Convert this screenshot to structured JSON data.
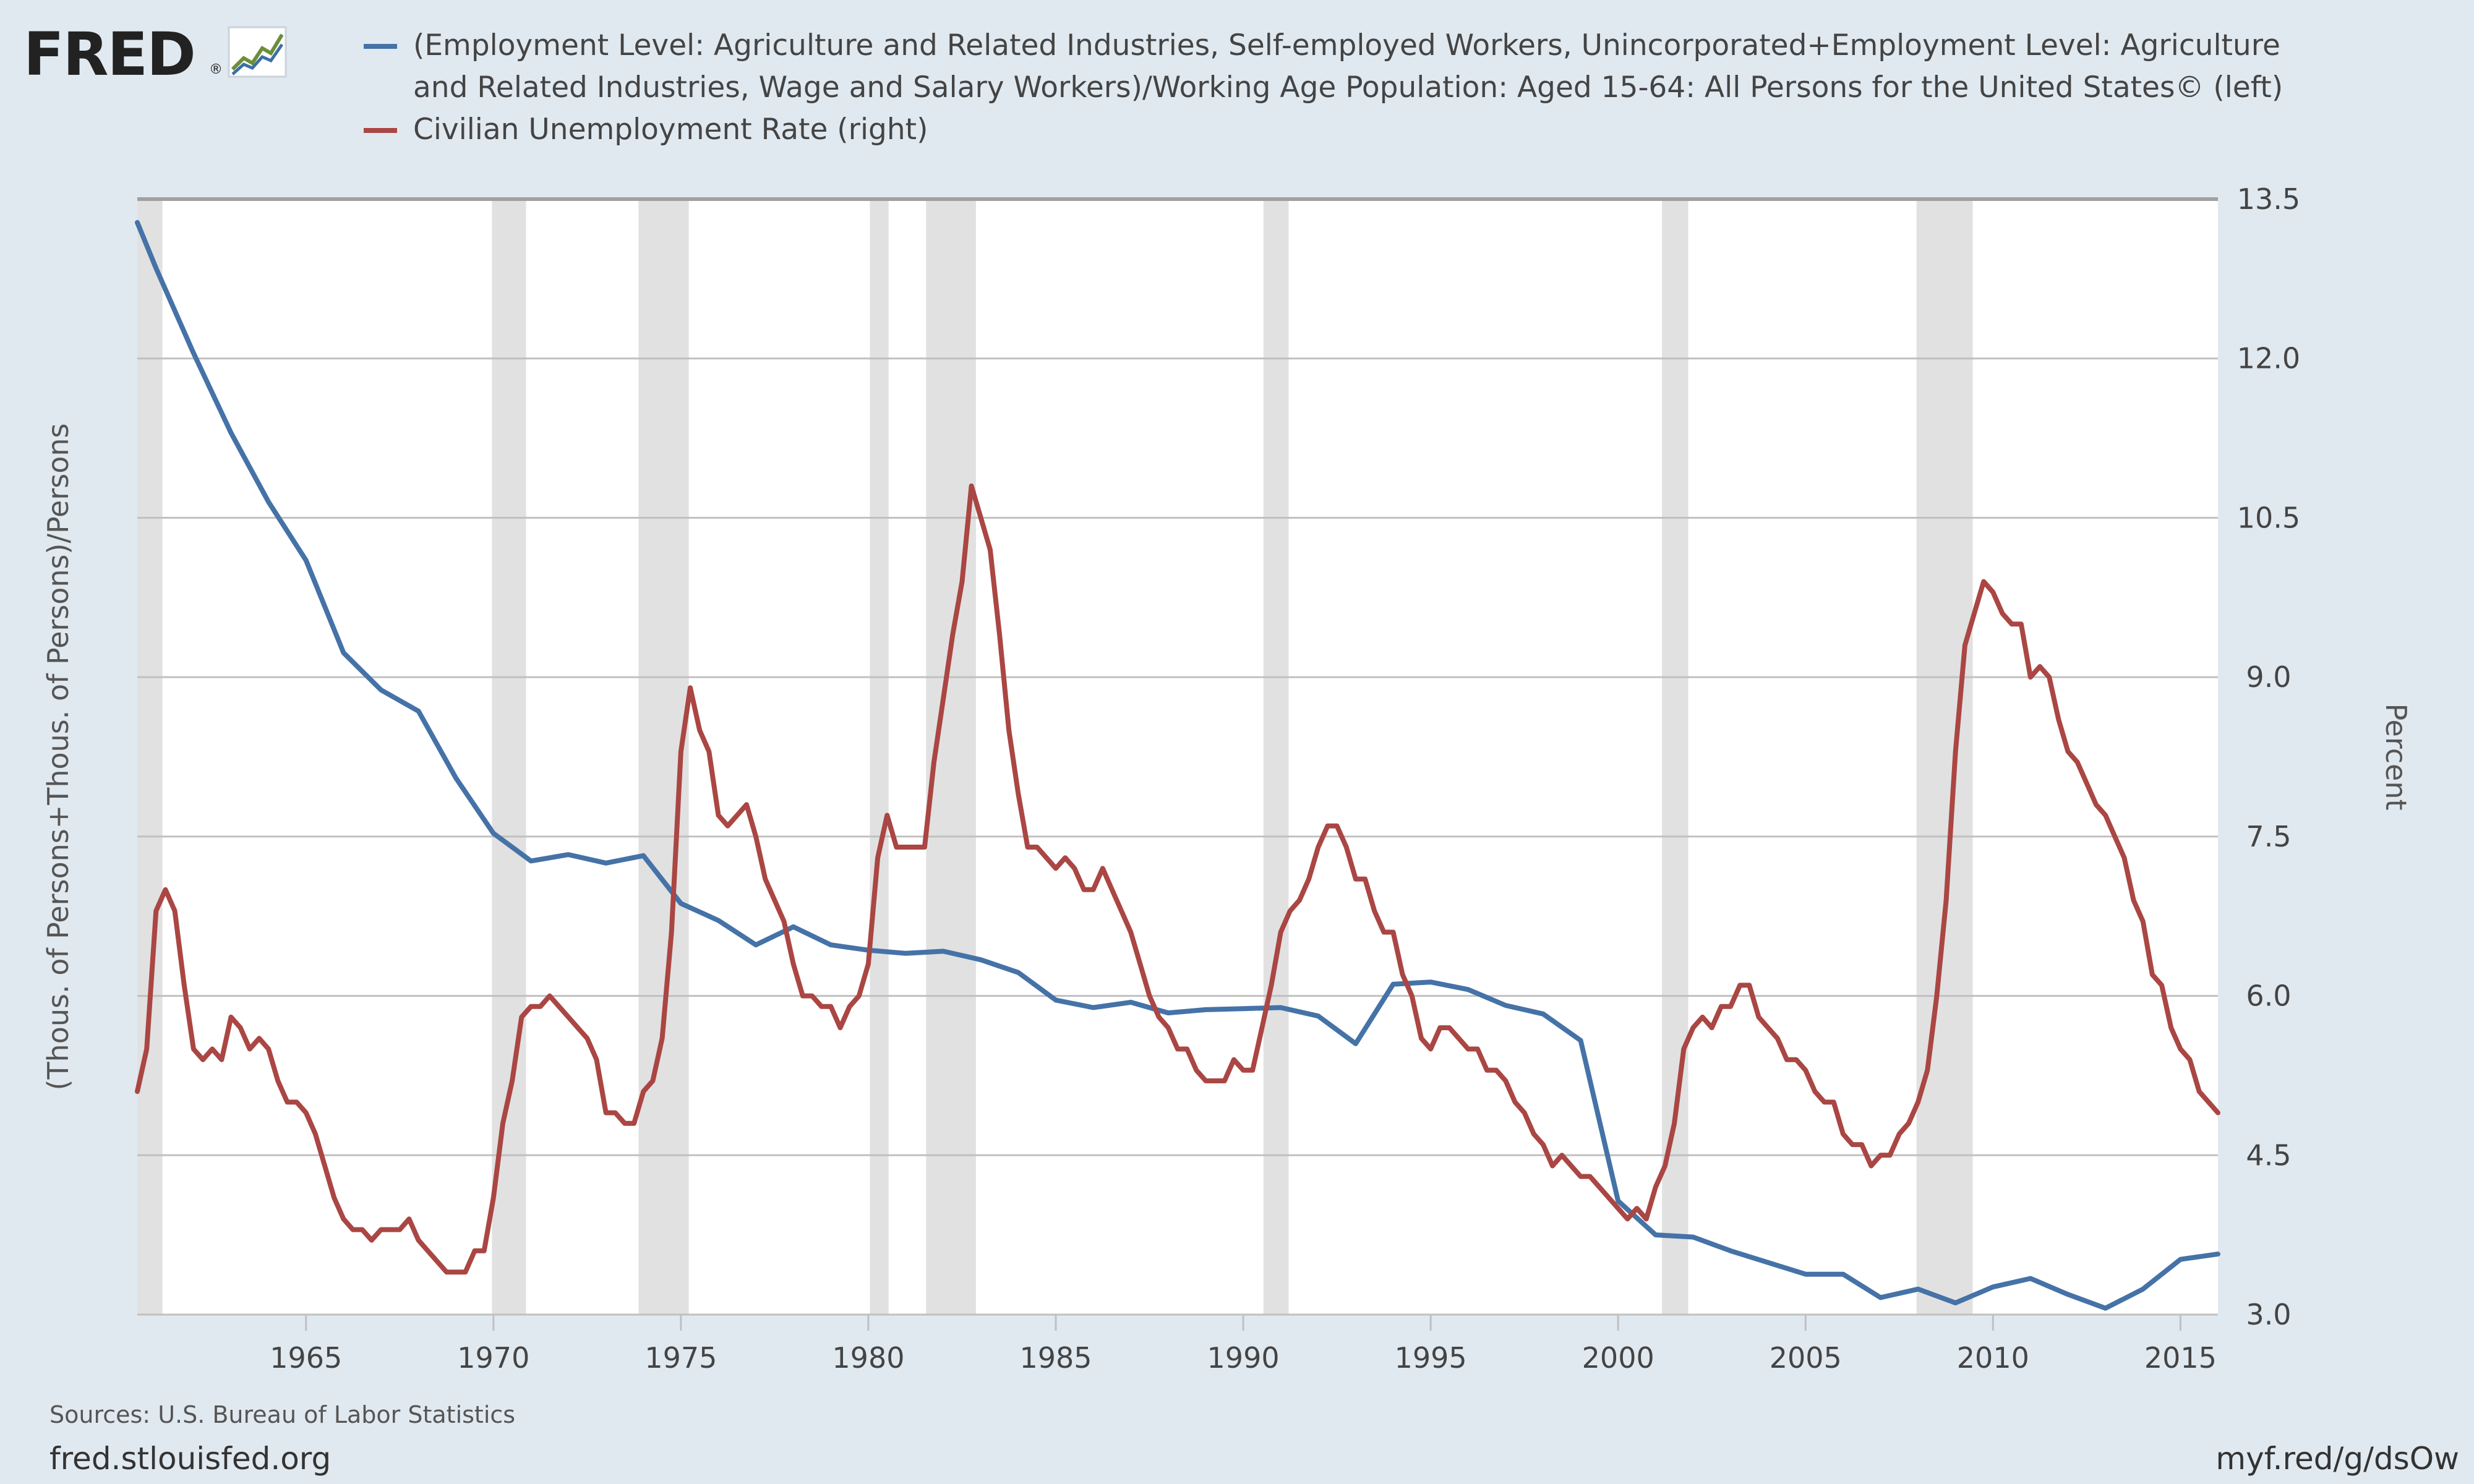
{
  "header": {
    "logo_text": "FRED",
    "logo_mark": "®"
  },
  "colors": {
    "background": "#e1e9f0",
    "series1": "#4572a7",
    "series2": "#aa4643",
    "recession": "#e1e1e1",
    "grid": "#c0c0c0"
  },
  "footer": {
    "sources": "Sources: U.S. Bureau of Labor Statistics",
    "site": "fred.stlouisfed.org",
    "short_link": "myf.red/g/dsOw"
  },
  "chart_data": {
    "type": "line",
    "title": "",
    "xlim": [
      1960.5,
      2016.0
    ],
    "x_ticks": [
      1965,
      1970,
      1975,
      1980,
      1985,
      1990,
      1995,
      2000,
      2005,
      2010,
      2015
    ],
    "x_tick_labels": [
      "1965",
      "1970",
      "1975",
      "1980",
      "1985",
      "1990",
      "1995",
      "2000",
      "2005",
      "2010",
      "2015"
    ],
    "left_axis": {
      "label": "(Thous. of Persons+Thous. of Persons)/Persons",
      "range": [
        3.0,
        13.5
      ]
    },
    "right_axis": {
      "label": "Percent",
      "range": [
        3.0,
        13.5
      ],
      "ticks": [
        3.0,
        4.5,
        6.0,
        7.5,
        9.0,
        10.5,
        12.0,
        13.5
      ],
      "tick_labels": [
        "3.0",
        "4.5",
        "6.0",
        "7.5",
        "9.0",
        "10.5",
        "12.0",
        "13.5"
      ]
    },
    "grid": true,
    "legend_position": "top",
    "recessions": [
      [
        1960.33,
        1961.17
      ],
      [
        1969.96,
        1970.87
      ],
      [
        1973.87,
        1975.21
      ],
      [
        1980.04,
        1980.54
      ],
      [
        1981.54,
        1982.87
      ],
      [
        1990.54,
        1991.21
      ],
      [
        2001.17,
        2001.87
      ],
      [
        2007.96,
        2009.46
      ]
    ],
    "series": [
      {
        "name": "(Employment Level: Agriculture and Related Industries, Self-employed Workers, Unincorporated+Employment Level: Agriculture and Related Industries, Wage and Salary Workers)/Working Age Population: Aged 15-64: All Persons for the United States© (left)",
        "color": "#4572a7",
        "axis": "left",
        "points": [
          [
            1960.5,
            13.28
          ],
          [
            1961,
            12.85
          ],
          [
            1962,
            12.05
          ],
          [
            1963,
            11.3
          ],
          [
            1964,
            10.65
          ],
          [
            1965,
            10.1
          ],
          [
            1966,
            9.23
          ],
          [
            1967,
            8.88
          ],
          [
            1968,
            8.68
          ],
          [
            1969,
            8.05
          ],
          [
            1970,
            7.53
          ],
          [
            1971,
            7.27
          ],
          [
            1972,
            7.33
          ],
          [
            1973,
            7.25
          ],
          [
            1974,
            7.32
          ],
          [
            1975,
            6.87
          ],
          [
            1976,
            6.71
          ],
          [
            1977,
            6.48
          ],
          [
            1978,
            6.65
          ],
          [
            1979,
            6.48
          ],
          [
            1980,
            6.43
          ],
          [
            1981,
            6.4
          ],
          [
            1982,
            6.42
          ],
          [
            1983,
            6.34
          ],
          [
            1984,
            6.22
          ],
          [
            1985,
            5.96
          ],
          [
            1986,
            5.89
          ],
          [
            1987,
            5.94
          ],
          [
            1988,
            5.84
          ],
          [
            1989,
            5.87
          ],
          [
            1990,
            5.88
          ],
          [
            1991,
            5.89
          ],
          [
            1992,
            5.81
          ],
          [
            1993,
            5.55
          ],
          [
            1994,
            6.11
          ],
          [
            1995,
            6.13
          ],
          [
            1996,
            6.06
          ],
          [
            1997,
            5.91
          ],
          [
            1998,
            5.83
          ],
          [
            1999,
            5.58
          ],
          [
            2000,
            4.07
          ],
          [
            2001,
            3.75
          ],
          [
            2002,
            3.73
          ],
          [
            2003,
            3.6
          ],
          [
            2004,
            3.49
          ],
          [
            2005,
            3.38
          ],
          [
            2006,
            3.38
          ],
          [
            2007,
            3.16
          ],
          [
            2008,
            3.24
          ],
          [
            2009,
            3.11
          ],
          [
            2010,
            3.26
          ],
          [
            2011,
            3.34
          ],
          [
            2012,
            3.19
          ],
          [
            2013,
            3.06
          ],
          [
            2014,
            3.24
          ],
          [
            2015,
            3.52
          ],
          [
            2016,
            3.57
          ]
        ]
      },
      {
        "name": "Civilian Unemployment Rate (right)",
        "color": "#aa4643",
        "axis": "right",
        "points": [
          [
            1960.5,
            5.1
          ],
          [
            1960.75,
            5.5
          ],
          [
            1961,
            6.8
          ],
          [
            1961.25,
            7.0
          ],
          [
            1961.5,
            6.8
          ],
          [
            1961.75,
            6.1
          ],
          [
            1962,
            5.5
          ],
          [
            1962.25,
            5.4
          ],
          [
            1962.5,
            5.5
          ],
          [
            1962.75,
            5.4
          ],
          [
            1963,
            5.8
          ],
          [
            1963.25,
            5.7
          ],
          [
            1963.5,
            5.5
          ],
          [
            1963.75,
            5.6
          ],
          [
            1964,
            5.5
          ],
          [
            1964.25,
            5.2
          ],
          [
            1964.5,
            5.0
          ],
          [
            1964.75,
            5.0
          ],
          [
            1965,
            4.9
          ],
          [
            1965.25,
            4.7
          ],
          [
            1965.5,
            4.4
          ],
          [
            1965.75,
            4.1
          ],
          [
            1966,
            3.9
          ],
          [
            1966.25,
            3.8
          ],
          [
            1966.5,
            3.8
          ],
          [
            1966.75,
            3.7
          ],
          [
            1967,
            3.8
          ],
          [
            1967.25,
            3.8
          ],
          [
            1967.5,
            3.8
          ],
          [
            1967.75,
            3.9
          ],
          [
            1968,
            3.7
          ],
          [
            1968.25,
            3.6
          ],
          [
            1968.5,
            3.5
          ],
          [
            1968.75,
            3.4
          ],
          [
            1969,
            3.4
          ],
          [
            1969.25,
            3.4
          ],
          [
            1969.5,
            3.6
          ],
          [
            1969.75,
            3.6
          ],
          [
            1970,
            4.1
          ],
          [
            1970.25,
            4.8
          ],
          [
            1970.5,
            5.2
          ],
          [
            1970.75,
            5.8
          ],
          [
            1971,
            5.9
          ],
          [
            1971.25,
            5.9
          ],
          [
            1971.5,
            6.0
          ],
          [
            1971.75,
            5.9
          ],
          [
            1972,
            5.8
          ],
          [
            1972.25,
            5.7
          ],
          [
            1972.5,
            5.6
          ],
          [
            1972.75,
            5.4
          ],
          [
            1973,
            4.9
          ],
          [
            1973.25,
            4.9
          ],
          [
            1973.5,
            4.8
          ],
          [
            1973.75,
            4.8
          ],
          [
            1974,
            5.1
          ],
          [
            1974.25,
            5.2
          ],
          [
            1974.5,
            5.6
          ],
          [
            1974.75,
            6.6
          ],
          [
            1975,
            8.3
          ],
          [
            1975.25,
            8.9
          ],
          [
            1975.5,
            8.5
          ],
          [
            1975.75,
            8.3
          ],
          [
            1976,
            7.7
          ],
          [
            1976.25,
            7.6
          ],
          [
            1976.5,
            7.7
          ],
          [
            1976.75,
            7.8
          ],
          [
            1977,
            7.5
          ],
          [
            1977.25,
            7.1
          ],
          [
            1977.5,
            6.9
          ],
          [
            1977.75,
            6.7
          ],
          [
            1978,
            6.3
          ],
          [
            1978.25,
            6.0
          ],
          [
            1978.5,
            6.0
          ],
          [
            1978.75,
            5.9
          ],
          [
            1979,
            5.9
          ],
          [
            1979.25,
            5.7
          ],
          [
            1979.5,
            5.9
          ],
          [
            1979.75,
            6.0
          ],
          [
            1980,
            6.3
          ],
          [
            1980.25,
            7.3
          ],
          [
            1980.5,
            7.7
          ],
          [
            1980.75,
            7.4
          ],
          [
            1981,
            7.4
          ],
          [
            1981.25,
            7.4
          ],
          [
            1981.5,
            7.4
          ],
          [
            1981.75,
            8.2
          ],
          [
            1982,
            8.8
          ],
          [
            1982.25,
            9.4
          ],
          [
            1982.5,
            9.9
          ],
          [
            1982.75,
            10.8
          ],
          [
            1983,
            10.5
          ],
          [
            1983.25,
            10.2
          ],
          [
            1983.5,
            9.4
          ],
          [
            1983.75,
            8.5
          ],
          [
            1984,
            7.9
          ],
          [
            1984.25,
            7.4
          ],
          [
            1984.5,
            7.4
          ],
          [
            1984.75,
            7.3
          ],
          [
            1985,
            7.2
          ],
          [
            1985.25,
            7.3
          ],
          [
            1985.5,
            7.2
          ],
          [
            1985.75,
            7.0
          ],
          [
            1986,
            7.0
          ],
          [
            1986.25,
            7.2
          ],
          [
            1986.5,
            7.0
          ],
          [
            1986.75,
            6.8
          ],
          [
            1987,
            6.6
          ],
          [
            1987.25,
            6.3
          ],
          [
            1987.5,
            6.0
          ],
          [
            1987.75,
            5.8
          ],
          [
            1988,
            5.7
          ],
          [
            1988.25,
            5.5
          ],
          [
            1988.5,
            5.5
          ],
          [
            1988.75,
            5.3
          ],
          [
            1989,
            5.2
          ],
          [
            1989.25,
            5.2
          ],
          [
            1989.5,
            5.2
          ],
          [
            1989.75,
            5.4
          ],
          [
            1990,
            5.3
          ],
          [
            1990.25,
            5.3
          ],
          [
            1990.5,
            5.7
          ],
          [
            1990.75,
            6.1
          ],
          [
            1991,
            6.6
          ],
          [
            1991.25,
            6.8
          ],
          [
            1991.5,
            6.9
          ],
          [
            1991.75,
            7.1
          ],
          [
            1992,
            7.4
          ],
          [
            1992.25,
            7.6
          ],
          [
            1992.5,
            7.6
          ],
          [
            1992.75,
            7.4
          ],
          [
            1993,
            7.1
          ],
          [
            1993.25,
            7.1
          ],
          [
            1993.5,
            6.8
          ],
          [
            1993.75,
            6.6
          ],
          [
            1994,
            6.6
          ],
          [
            1994.25,
            6.2
          ],
          [
            1994.5,
            6.0
          ],
          [
            1994.75,
            5.6
          ],
          [
            1995,
            5.5
          ],
          [
            1995.25,
            5.7
          ],
          [
            1995.5,
            5.7
          ],
          [
            1995.75,
            5.6
          ],
          [
            1996,
            5.5
          ],
          [
            1996.25,
            5.5
          ],
          [
            1996.5,
            5.3
          ],
          [
            1996.75,
            5.3
          ],
          [
            1997,
            5.2
          ],
          [
            1997.25,
            5.0
          ],
          [
            1997.5,
            4.9
          ],
          [
            1997.75,
            4.7
          ],
          [
            1998,
            4.6
          ],
          [
            1998.25,
            4.4
          ],
          [
            1998.5,
            4.5
          ],
          [
            1998.75,
            4.4
          ],
          [
            1999,
            4.3
          ],
          [
            1999.25,
            4.3
          ],
          [
            1999.5,
            4.2
          ],
          [
            1999.75,
            4.1
          ],
          [
            2000,
            4.0
          ],
          [
            2000.25,
            3.9
          ],
          [
            2000.5,
            4.0
          ],
          [
            2000.75,
            3.9
          ],
          [
            2001,
            4.2
          ],
          [
            2001.25,
            4.4
          ],
          [
            2001.5,
            4.8
          ],
          [
            2001.75,
            5.5
          ],
          [
            2002,
            5.7
          ],
          [
            2002.25,
            5.8
          ],
          [
            2002.5,
            5.7
          ],
          [
            2002.75,
            5.9
          ],
          [
            2003,
            5.9
          ],
          [
            2003.25,
            6.1
          ],
          [
            2003.5,
            6.1
          ],
          [
            2003.75,
            5.8
          ],
          [
            2004,
            5.7
          ],
          [
            2004.25,
            5.6
          ],
          [
            2004.5,
            5.4
          ],
          [
            2004.75,
            5.4
          ],
          [
            2005,
            5.3
          ],
          [
            2005.25,
            5.1
          ],
          [
            2005.5,
            5.0
          ],
          [
            2005.75,
            5.0
          ],
          [
            2006,
            4.7
          ],
          [
            2006.25,
            4.6
          ],
          [
            2006.5,
            4.6
          ],
          [
            2006.75,
            4.4
          ],
          [
            2007,
            4.5
          ],
          [
            2007.25,
            4.5
          ],
          [
            2007.5,
            4.7
          ],
          [
            2007.75,
            4.8
          ],
          [
            2008,
            5.0
          ],
          [
            2008.25,
            5.3
          ],
          [
            2008.5,
            6.0
          ],
          [
            2008.75,
            6.9
          ],
          [
            2009,
            8.3
          ],
          [
            2009.25,
            9.3
          ],
          [
            2009.5,
            9.6
          ],
          [
            2009.75,
            9.9
          ],
          [
            2010,
            9.8
          ],
          [
            2010.25,
            9.6
          ],
          [
            2010.5,
            9.5
          ],
          [
            2010.75,
            9.5
          ],
          [
            2011,
            9.0
          ],
          [
            2011.25,
            9.1
          ],
          [
            2011.5,
            9.0
          ],
          [
            2011.75,
            8.6
          ],
          [
            2012,
            8.3
          ],
          [
            2012.25,
            8.2
          ],
          [
            2012.5,
            8.0
          ],
          [
            2012.75,
            7.8
          ],
          [
            2013,
            7.7
          ],
          [
            2013.25,
            7.5
          ],
          [
            2013.5,
            7.3
          ],
          [
            2013.75,
            6.9
          ],
          [
            2014,
            6.7
          ],
          [
            2014.25,
            6.2
          ],
          [
            2014.5,
            6.1
          ],
          [
            2014.75,
            5.7
          ],
          [
            2015,
            5.5
          ],
          [
            2015.25,
            5.4
          ],
          [
            2015.5,
            5.1
          ],
          [
            2015.75,
            5.0
          ],
          [
            2016,
            4.9
          ]
        ]
      }
    ]
  }
}
